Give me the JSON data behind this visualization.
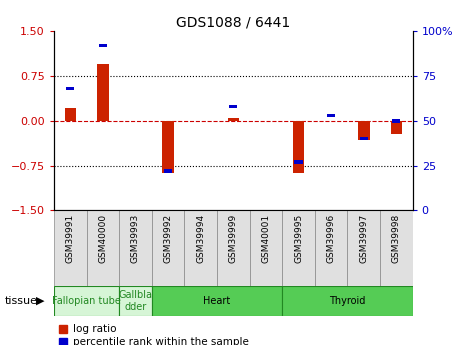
{
  "title": "GDS1088 / 6441",
  "samples": [
    "GSM39991",
    "GSM40000",
    "GSM39993",
    "GSM39992",
    "GSM39994",
    "GSM39999",
    "GSM40001",
    "GSM39995",
    "GSM39996",
    "GSM39997",
    "GSM39998"
  ],
  "log_ratios": [
    0.22,
    0.95,
    0.0,
    -0.88,
    0.0,
    0.04,
    0.0,
    -0.88,
    0.0,
    -0.32,
    -0.22
  ],
  "percentile_ranks": [
    68,
    92,
    0,
    22,
    0,
    58,
    0,
    27,
    53,
    40,
    50
  ],
  "tissues": [
    {
      "name": "Fallopian tube",
      "start": 0,
      "end": 2,
      "color": "#d6f5d6"
    },
    {
      "name": "Gallbla\ndder",
      "start": 2,
      "end": 3,
      "color": "#d6f5d6"
    },
    {
      "name": "Heart",
      "start": 3,
      "end": 7,
      "color": "#55cc55"
    },
    {
      "name": "Thyroid",
      "start": 7,
      "end": 11,
      "color": "#55cc55"
    }
  ],
  "ylim_left": [
    -1.5,
    1.5
  ],
  "ylim_right": [
    0,
    100
  ],
  "left_ticks": [
    -1.5,
    -0.75,
    0,
    0.75,
    1.5
  ],
  "right_ticks": [
    0,
    25,
    50,
    75,
    100
  ],
  "left_color": "#cc0000",
  "right_color": "#0000cc",
  "bar_color_red": "#cc2200",
  "bar_color_blue": "#0000cc",
  "zero_line_color": "#cc0000",
  "bg_color": "#ffffff"
}
